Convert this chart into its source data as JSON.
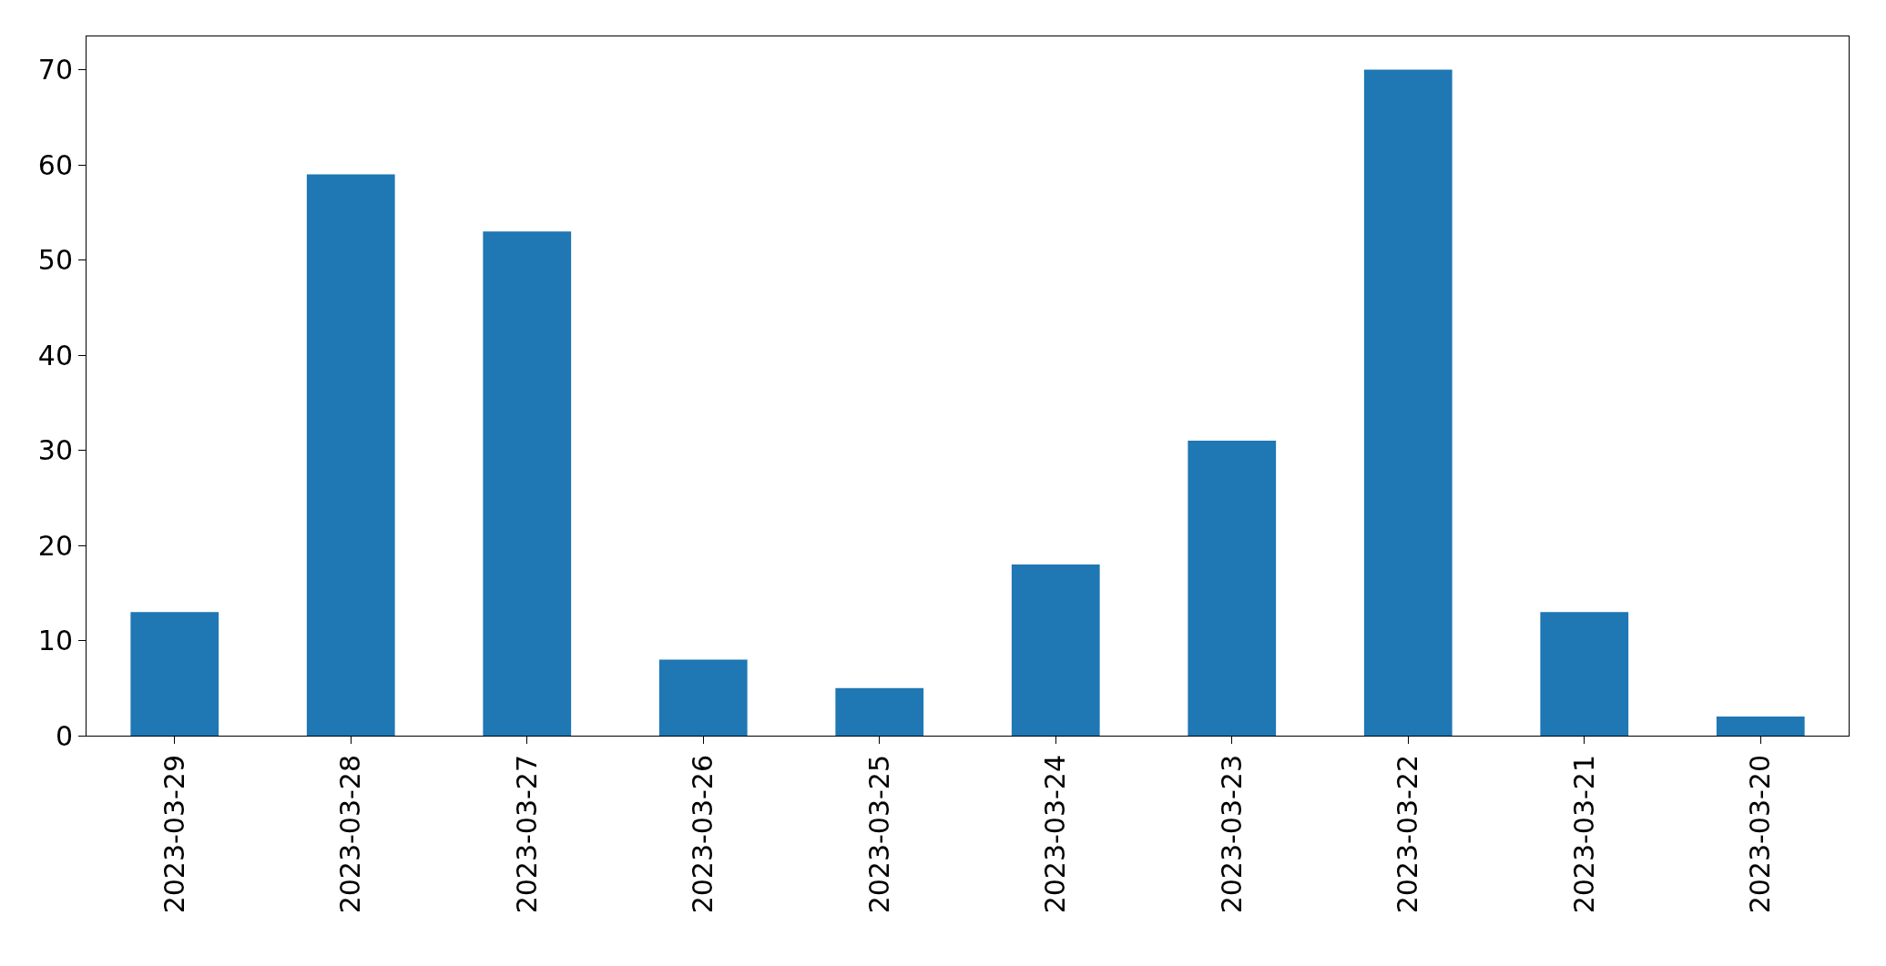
{
  "chart_data": {
    "type": "bar",
    "categories": [
      "2023-03-29",
      "2023-03-28",
      "2023-03-27",
      "2023-03-26",
      "2023-03-25",
      "2023-03-24",
      "2023-03-23",
      "2023-03-22",
      "2023-03-21",
      "2023-03-20"
    ],
    "values": [
      13,
      59,
      53,
      8,
      5,
      18,
      31,
      70,
      13,
      2
    ],
    "color": "#1f77b4",
    "ylim": [
      0,
      73.5
    ],
    "yticks": [
      0,
      10,
      20,
      30,
      40,
      50,
      60,
      70
    ]
  }
}
